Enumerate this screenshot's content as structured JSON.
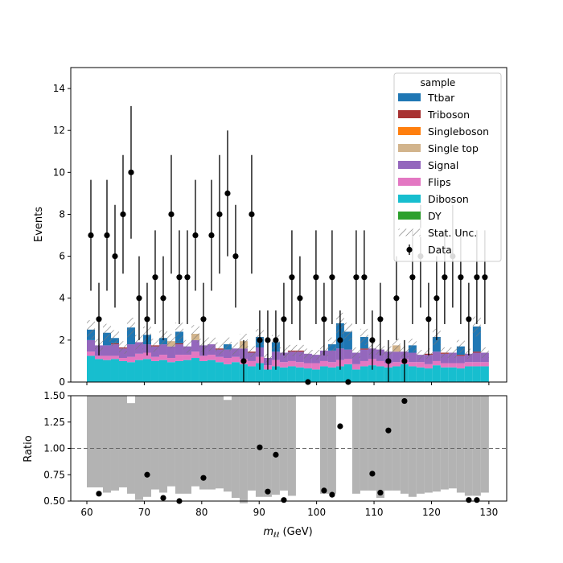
{
  "chart_data": {
    "type": "bar",
    "xlabel_main": "m",
    "xlabel_sub": "ℓℓ",
    "xlabel_unit": " (GeV)",
    "xlim": [
      57.2,
      133.1
    ],
    "xticks": [
      60,
      70,
      80,
      90,
      100,
      110,
      120,
      130
    ],
    "main": {
      "ylabel": "Events",
      "ylim": [
        0,
        15
      ],
      "yticks": [
        0,
        2,
        4,
        6,
        8,
        10,
        12,
        14
      ]
    },
    "ratio": {
      "ylabel": "Ratio",
      "ylim": [
        0.5,
        1.5
      ],
      "yticks": [
        "0.50",
        "0.75",
        "1.00",
        "1.25",
        "1.50"
      ],
      "reference": 1.0
    },
    "bin_edges": [
      60.0,
      61.4,
      62.8,
      64.2,
      65.6,
      67.0,
      68.4,
      69.8,
      71.2,
      72.6,
      74.0,
      75.4,
      76.8,
      78.2,
      79.6,
      81.0,
      82.4,
      83.8,
      85.2,
      86.6,
      88.0,
      89.4,
      90.8,
      92.2,
      93.6,
      95.0,
      96.4,
      97.8,
      99.2,
      100.6,
      102.0,
      103.4,
      104.8,
      106.2,
      107.6,
      109.0,
      110.4,
      111.8,
      113.2,
      114.6,
      116.0,
      117.4,
      118.8,
      120.2,
      121.6,
      123.0,
      124.4,
      125.8,
      127.2,
      128.6,
      130.0
    ],
    "legend": {
      "title": "sample",
      "entries": [
        "Ttbar",
        "Triboson",
        "Singleboson",
        "Single top",
        "Signal",
        "Flips",
        "Diboson",
        "DY",
        "Stat. Unc.",
        "Data"
      ],
      "position": "upper right"
    },
    "colors": {
      "Ttbar": "#1f77b4",
      "Triboson": "#a83232",
      "Singleboson": "#ff7f0e",
      "Single top": "#d2b48c",
      "Signal": "#9467bd",
      "Flips": "#e377c2",
      "Diboson": "#17becf",
      "DY": "#2ca02c",
      "ratio_band": "#b3b3b3"
    },
    "series": [
      {
        "name": "Diboson",
        "values": [
          1.25,
          1.1,
          1.05,
          1.1,
          1.0,
          0.95,
          1.05,
          1.1,
          1.0,
          1.05,
          0.95,
          1.0,
          1.05,
          1.15,
          1.0,
          1.05,
          0.95,
          0.85,
          0.95,
          0.85,
          0.75,
          0.9,
          0.6,
          0.75,
          0.7,
          0.75,
          0.7,
          0.65,
          0.6,
          0.75,
          0.7,
          0.75,
          0.85,
          0.6,
          0.75,
          0.8,
          0.75,
          0.7,
          0.75,
          0.85,
          0.75,
          0.7,
          0.65,
          0.8,
          0.7,
          0.7,
          0.65,
          0.75,
          0.75,
          0.75
        ]
      },
      {
        "name": "Flips",
        "values": [
          0.2,
          0.15,
          0.2,
          0.15,
          0.15,
          0.25,
          0.3,
          0.3,
          0.2,
          0.25,
          0.2,
          0.3,
          0.25,
          0.3,
          0.25,
          0.25,
          0.25,
          0.3,
          0.25,
          0.25,
          0.25,
          0.3,
          0.2,
          0.3,
          0.25,
          0.25,
          0.25,
          0.25,
          0.3,
          0.25,
          0.25,
          0.3,
          0.25,
          0.25,
          0.25,
          0.3,
          0.25,
          0.2,
          0.2,
          0.25,
          0.2,
          0.25,
          0.2,
          0.2,
          0.2,
          0.2,
          0.25,
          0.2,
          0.2,
          0.2
        ]
      },
      {
        "name": "Signal",
        "values": [
          0.55,
          0.5,
          0.5,
          0.55,
          0.45,
          0.6,
          0.55,
          0.4,
          0.5,
          0.5,
          0.55,
          0.5,
          0.4,
          0.55,
          0.5,
          0.5,
          0.35,
          0.4,
          0.4,
          0.5,
          0.4,
          0.45,
          0.35,
          0.4,
          0.45,
          0.45,
          0.5,
          0.45,
          0.4,
          0.5,
          0.55,
          0.55,
          0.45,
          0.55,
          0.55,
          0.5,
          0.55,
          0.55,
          0.5,
          0.35,
          0.45,
          0.35,
          0.45,
          0.45,
          0.45,
          0.5,
          0.35,
          0.4,
          0.45,
          0.45
        ]
      },
      {
        "name": "Single top",
        "values": [
          0,
          0,
          0,
          0,
          0,
          0,
          0,
          0,
          0,
          0,
          0.25,
          0,
          0,
          0.3,
          0,
          0,
          0,
          0,
          0,
          0.35,
          0,
          0,
          0,
          0,
          0,
          0,
          0,
          0,
          0,
          0,
          0,
          0,
          0,
          0,
          0,
          0,
          0,
          0,
          0.3,
          0,
          0,
          0,
          0,
          0,
          0,
          0,
          0,
          0,
          0,
          0
        ]
      },
      {
        "name": "Singleboson",
        "values": [
          0,
          0,
          0,
          0,
          0,
          0,
          0,
          0,
          0,
          0,
          0,
          0,
          0,
          0,
          0,
          0,
          0,
          0,
          0,
          0,
          0,
          0,
          0,
          0,
          0,
          0,
          0,
          0,
          0,
          0,
          0,
          0,
          0,
          0,
          0,
          0,
          0,
          0,
          0,
          0,
          0,
          0,
          0,
          0,
          0,
          0,
          0,
          0,
          0,
          0
        ]
      },
      {
        "name": "Triboson",
        "values": [
          0,
          0,
          0,
          0.05,
          0.05,
          0,
          0,
          0,
          0.05,
          0,
          0,
          0.05,
          0,
          0,
          0,
          0,
          0.05,
          0,
          0,
          0,
          0.05,
          0,
          0,
          0,
          0,
          0.05,
          0.05,
          0,
          0,
          0,
          0,
          0,
          0,
          0,
          0.05,
          0,
          0,
          0,
          0,
          0,
          0,
          0,
          0.05,
          0,
          0.05,
          0,
          0.05,
          0,
          0.05,
          0
        ]
      },
      {
        "name": "Ttbar",
        "values": [
          0.5,
          0,
          0.6,
          0.25,
          0,
          0.8,
          0,
          0.45,
          0,
          0.3,
          0,
          0.55,
          0,
          0,
          0,
          0,
          0,
          0.25,
          0,
          0,
          0,
          0.5,
          0,
          0.45,
          0,
          0,
          0,
          0,
          0,
          0,
          0.3,
          1.2,
          0.85,
          0,
          0.55,
          0,
          0,
          0,
          0,
          0,
          0.35,
          0,
          0,
          0.7,
          0,
          0,
          0.4,
          0,
          1.2,
          0
        ]
      },
      {
        "name": "DY",
        "values": [
          0,
          0,
          0,
          0,
          0,
          0,
          0,
          0,
          0,
          0,
          0,
          0,
          0,
          0,
          0,
          0,
          0,
          0,
          0,
          0,
          0,
          0,
          0,
          0,
          0,
          0,
          0,
          0,
          0,
          0,
          0,
          0,
          0,
          0,
          0,
          0,
          0,
          0,
          0,
          0,
          0,
          0,
          0,
          0,
          0,
          0,
          0,
          0,
          0,
          0
        ]
      }
    ],
    "data_points": {
      "x": [
        60.7,
        62.1,
        63.5,
        64.9,
        66.3,
        67.7,
        69.1,
        70.5,
        71.9,
        73.3,
        74.7,
        76.1,
        77.5,
        78.9,
        80.3,
        81.7,
        83.1,
        84.5,
        85.9,
        87.3,
        88.7,
        90.1,
        91.5,
        92.9,
        94.3,
        95.7,
        97.1,
        98.5,
        99.9,
        101.3,
        102.7,
        104.1,
        105.5,
        106.9,
        108.3,
        109.7,
        111.1,
        112.5,
        113.9,
        115.3,
        116.7,
        118.1,
        119.5,
        120.9,
        122.3,
        123.7,
        125.1,
        126.5,
        127.9,
        129.3
      ],
      "y": [
        7,
        3,
        7,
        6,
        8,
        10,
        4,
        3,
        5,
        4,
        8,
        5,
        5,
        7,
        3,
        7,
        8,
        9,
        6,
        1,
        8,
        2,
        2,
        2,
        3,
        5,
        4,
        0,
        5,
        3,
        5,
        2,
        0,
        5,
        5,
        2,
        3,
        1,
        4,
        1,
        5,
        6,
        3,
        4,
        5,
        6,
        5,
        3,
        5,
        5
      ]
    },
    "ratio_points": {
      "x": [
        62.1,
        70.5,
        73.3,
        76.1,
        80.3,
        90.1,
        91.5,
        92.9,
        94.3,
        101.3,
        102.7,
        104.1,
        109.7,
        111.1,
        112.5,
        115.3,
        126.5,
        127.9
      ],
      "y": [
        0.57,
        0.75,
        0.53,
        0.5,
        0.72,
        1.01,
        0.59,
        0.94,
        0.51,
        0.6,
        0.56,
        1.21,
        0.76,
        0.58,
        1.17,
        1.45,
        0.51,
        0.51
      ]
    },
    "ratio_band": [
      0.63,
      0.63,
      0.58,
      0.6,
      0.63,
      0.57,
      0.51,
      0.54,
      0.61,
      0.58,
      0.64,
      0.57,
      0.57,
      0.64,
      0.61,
      0.61,
      0.62,
      0.59,
      0.53,
      0.48,
      0.6,
      0.54,
      0.54,
      0.56,
      0.6,
      0.55,
      null,
      null,
      null,
      0.57,
      0.57,
      null,
      null,
      0.57,
      0.6,
      0.6,
      0.53,
      0.6,
      0.6,
      0.57,
      0.54,
      0.57,
      0.58,
      0.59,
      0.61,
      0.62,
      0.58,
      0.55,
      0.55,
      0.58
    ],
    "ratio_band_top": [
      1.5,
      1.5,
      1.5,
      1.5,
      1.5,
      1.43,
      1.5,
      1.5,
      1.5,
      1.5,
      1.5,
      1.5,
      1.5,
      1.5,
      1.5,
      1.5,
      1.5,
      1.46,
      1.5,
      1.5,
      1.5,
      1.5,
      1.5,
      1.5,
      1.5,
      1.5,
      null,
      null,
      null,
      1.5,
      1.5,
      null,
      null,
      1.5,
      1.5,
      1.5,
      1.5,
      1.5,
      1.5,
      1.5,
      1.5,
      1.5,
      1.5,
      1.5,
      1.5,
      1.5,
      1.5,
      1.5,
      1.5,
      1.5
    ]
  }
}
